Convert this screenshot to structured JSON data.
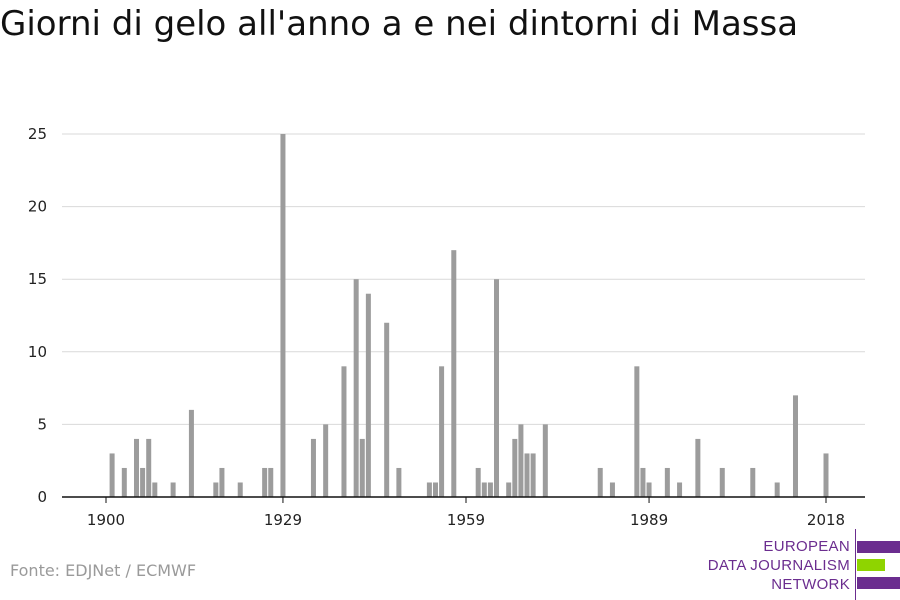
{
  "title": "Giorni di gelo all'anno a e nei dintorni di Massa",
  "source": "Fonte: EDJNet / ECMWF",
  "logo": {
    "line1": "EUROPEAN",
    "line2": "DATA JOURNALISM",
    "line3": "NETWORK",
    "colors": {
      "purple": "#6b2d8f",
      "green": "#8fd400"
    }
  },
  "colors": {
    "bar": "#9c9c9c",
    "grid": "#d9d9d9",
    "axis": "#111111"
  },
  "chart_data": {
    "type": "bar",
    "xlim": [
      1900,
      2018
    ],
    "ylim": [
      0,
      25
    ],
    "yticks": [
      0,
      5,
      10,
      15,
      20,
      25
    ],
    "xticks": [
      1900,
      1929,
      1959,
      1989,
      2018
    ],
    "grid": true,
    "legend": "none",
    "series": [
      {
        "x": [
          1900,
          1901,
          1902,
          1903,
          1904,
          1905,
          1906,
          1907,
          1908,
          1909,
          1910,
          1911,
          1912,
          1913,
          1914,
          1915,
          1916,
          1917,
          1918,
          1919,
          1920,
          1921,
          1922,
          1923,
          1924,
          1925,
          1926,
          1927,
          1928,
          1929,
          1930,
          1931,
          1932,
          1933,
          1934,
          1935,
          1936,
          1937,
          1938,
          1939,
          1940,
          1941,
          1942,
          1943,
          1944,
          1945,
          1946,
          1947,
          1948,
          1949,
          1950,
          1951,
          1952,
          1953,
          1954,
          1955,
          1956,
          1957,
          1958,
          1959,
          1960,
          1961,
          1962,
          1963,
          1964,
          1965,
          1966,
          1967,
          1968,
          1969,
          1970,
          1971,
          1972,
          1973,
          1974,
          1975,
          1976,
          1977,
          1978,
          1979,
          1980,
          1981,
          1982,
          1983,
          1984,
          1985,
          1986,
          1987,
          1988,
          1989,
          1990,
          1991,
          1992,
          1993,
          1994,
          1995,
          1996,
          1997,
          1998,
          1999,
          2000,
          2001,
          2002,
          2003,
          2004,
          2005,
          2006,
          2007,
          2008,
          2009,
          2010,
          2011,
          2012,
          2013,
          2014,
          2015,
          2016,
          2017,
          2018
        ],
        "values": [
          0,
          3,
          0,
          2,
          0,
          4,
          2,
          4,
          1,
          0,
          0,
          1,
          0,
          0,
          6,
          0,
          0,
          0,
          1,
          2,
          0,
          0,
          1,
          0,
          0,
          0,
          2,
          2,
          0,
          25,
          0,
          0,
          0,
          0,
          4,
          0,
          5,
          0,
          0,
          9,
          0,
          15,
          4,
          14,
          0,
          0,
          12,
          0,
          2,
          0,
          0,
          0,
          0,
          1,
          1,
          9,
          0,
          17,
          0,
          0,
          0,
          2,
          1,
          1,
          15,
          0,
          1,
          4,
          5,
          3,
          3,
          0,
          5,
          0,
          0,
          0,
          0,
          0,
          0,
          0,
          0,
          2,
          0,
          1,
          0,
          0,
          0,
          9,
          2,
          1,
          0,
          0,
          2,
          0,
          1,
          0,
          0,
          4,
          0,
          0,
          0,
          2,
          0,
          0,
          0,
          0,
          2,
          0,
          0,
          0,
          1,
          0,
          0,
          7,
          0,
          0,
          0,
          0,
          3
        ]
      }
    ]
  }
}
